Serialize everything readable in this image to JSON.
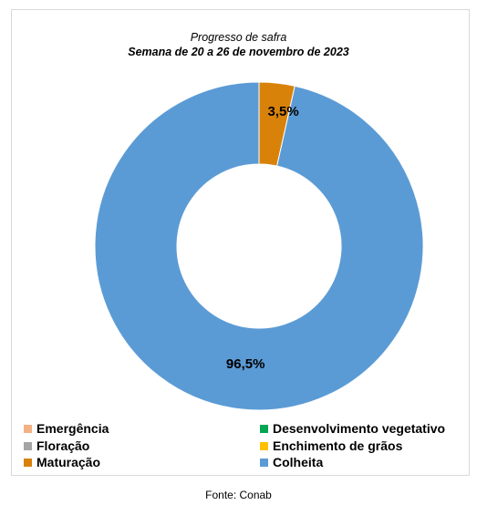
{
  "chart_data": {
    "type": "pie",
    "style": "donut",
    "title": "Progresso de safra",
    "subtitle": "Semana de 20 a 26 de novembro de 2023",
    "categories": [
      "Emergência",
      "Desenvolvimento vegetativo",
      "Floração",
      "Enchimento de grãos",
      "Maturação",
      "Colheita"
    ],
    "values": [
      0,
      0,
      0,
      0,
      3.5,
      96.5
    ],
    "data_labels": [
      "",
      "",
      "",
      "",
      "3,5%",
      "96,5%"
    ],
    "colors": [
      "#f4b183",
      "#00a651",
      "#a5a5a5",
      "#ffc000",
      "#d9820a",
      "#5b9bd5"
    ],
    "legend_position": "bottom"
  },
  "legend": [
    {
      "label": "Emergência",
      "color": "#f4b183"
    },
    {
      "label": "Desenvolvimento vegetativo",
      "color": "#00a651"
    },
    {
      "label": "Floração",
      "color": "#a5a5a5"
    },
    {
      "label": "Enchimento de grãos",
      "color": "#ffc000"
    },
    {
      "label": "Maturação",
      "color": "#d9820a"
    },
    {
      "label": "Colheita",
      "color": "#5b9bd5"
    }
  ],
  "source": "Fonte: Conab"
}
